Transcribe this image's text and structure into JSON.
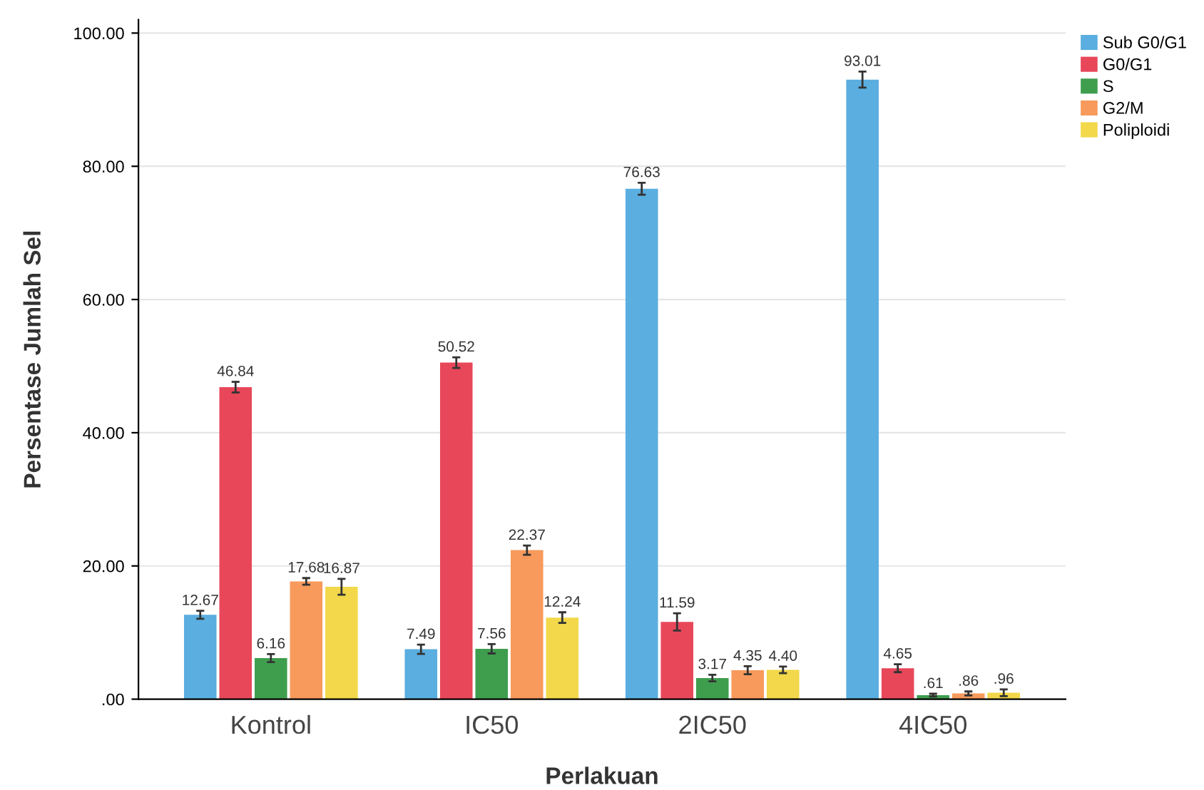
{
  "chart_data": {
    "type": "bar",
    "xlabel": "Perlakuan",
    "ylabel": "Persentase Jumlah Sel",
    "categories": [
      "Kontrol",
      "IC50",
      "2IC50",
      "4IC50"
    ],
    "series": [
      {
        "name": "Sub G0/G1",
        "color": "#5aaee0",
        "values": [
          12.67,
          7.49,
          76.63,
          93.01
        ],
        "errors": [
          0.6,
          0.7,
          0.9,
          1.2
        ],
        "value_labels": [
          "12.67",
          "7.49",
          "76.63",
          "93.01"
        ]
      },
      {
        "name": "G0/G1",
        "color": "#e8475a",
        "values": [
          46.84,
          50.52,
          11.59,
          4.65
        ],
        "errors": [
          0.8,
          0.8,
          1.3,
          0.6
        ],
        "value_labels": [
          "46.84",
          "50.52",
          "11.59",
          "4.65"
        ]
      },
      {
        "name": "S",
        "color": "#3e9e4e",
        "values": [
          6.16,
          7.56,
          3.17,
          0.61
        ],
        "errors": [
          0.6,
          0.7,
          0.5,
          0.2
        ],
        "value_labels": [
          "6.16",
          "7.56",
          "3.17",
          ".61"
        ]
      },
      {
        "name": "G2/M",
        "color": "#f79a5c",
        "values": [
          17.68,
          22.37,
          4.35,
          0.86
        ],
        "errors": [
          0.5,
          0.7,
          0.6,
          0.3
        ],
        "value_labels": [
          "17.68",
          "22.37",
          "4.35",
          ".86"
        ]
      },
      {
        "name": "Poliploidi",
        "color": "#f2d84a",
        "values": [
          16.87,
          12.24,
          4.4,
          0.96
        ],
        "errors": [
          1.2,
          0.8,
          0.5,
          0.5
        ],
        "value_labels": [
          "16.87",
          "12.24",
          "4.40",
          ".96"
        ]
      }
    ],
    "ylim": [
      0,
      102
    ],
    "yticks": [
      {
        "value": 0,
        "label": ".00"
      },
      {
        "value": 20,
        "label": "20.00"
      },
      {
        "value": 40,
        "label": "40.00"
      },
      {
        "value": 60,
        "label": "60.00"
      },
      {
        "value": 80,
        "label": "80.00"
      },
      {
        "value": 100,
        "label": "100.00"
      }
    ],
    "grid": "y",
    "legend": "top right"
  }
}
